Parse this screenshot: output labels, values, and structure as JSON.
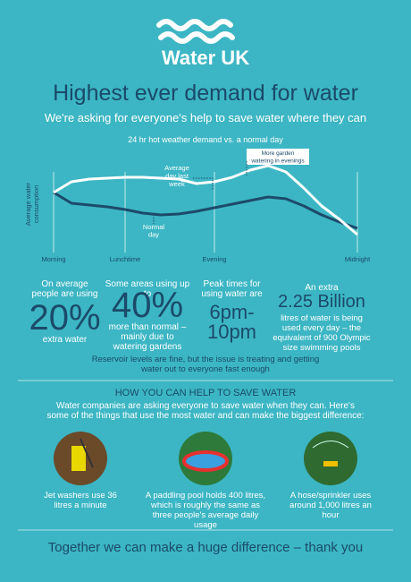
{
  "logo": {
    "text": "Water UK"
  },
  "header": {
    "title": "Highest ever demand for water",
    "subtitle": "We're asking for everyone's help to save water where they can"
  },
  "chart_data": {
    "type": "line",
    "title": "24 hr hot weather demand vs. a normal day",
    "y_label": "Average water consumption",
    "categories": [
      "Morning",
      null,
      null,
      null,
      "Lunchtime",
      null,
      null,
      null,
      null,
      "Evening",
      null,
      null,
      null,
      null,
      null,
      null,
      null,
      "Midnight"
    ],
    "series": [
      {
        "name": "Average day last week",
        "color": "#ffffff",
        "values": [
          60,
          72,
          75,
          76,
          77,
          77,
          76,
          75,
          70,
          72,
          77,
          85,
          90,
          83,
          65,
          45,
          30,
          13
        ]
      },
      {
        "name": "Normal day",
        "color": "#1d4a6b",
        "values": [
          60,
          48,
          46,
          44,
          41,
          37,
          35,
          36,
          39,
          43,
          47,
          51,
          55,
          53,
          45,
          35,
          27,
          20
        ]
      }
    ],
    "ylim": [
      0,
      100
    ],
    "annotations": [
      "More garden watering in evenings"
    ]
  },
  "stats": [
    {
      "top": "On average people are using",
      "big": "20%",
      "bottom": "extra water"
    },
    {
      "top": "Some areas using up to",
      "big": "40%",
      "bottom": "more than normal – mainly due to watering gardens"
    },
    {
      "top": "Peak times for using water are",
      "big": "6pm-10pm"
    },
    {
      "top": "An extra",
      "big": "2.25 Billion",
      "bottom": "litres of water is being used every day – the equivalent of 900 Olympic size swimming pools"
    }
  ],
  "note": "Reservoir levels are fine, but the issue is treating and getting water out to everyone fast enough",
  "help": {
    "title": "HOW YOU CAN HELP TO SAVE WATER",
    "intro": "Water companies are asking everyone to save water when they can. Here's some of the things that use the most water and can make the biggest difference:",
    "tips": [
      "Jet washers use 36 litres a minute",
      "A paddling pool holds 400 litres, which is roughly the same as three people's average daily usage",
      "A hose/sprinkler uses around 1,000 litres an hour"
    ]
  },
  "footer": "Together we can make a huge difference – thank you"
}
